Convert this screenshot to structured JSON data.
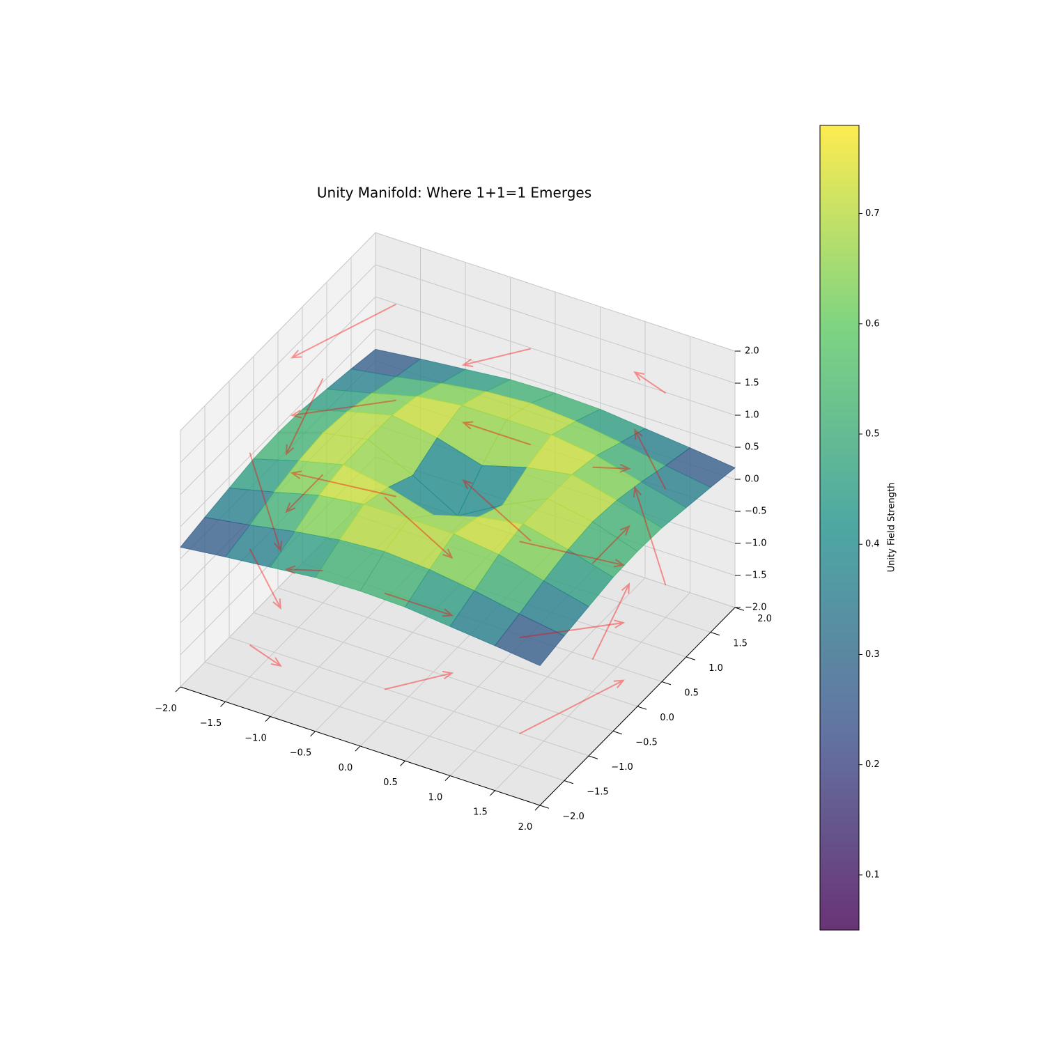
{
  "chart_data": {
    "type": "surface3d",
    "title": "Unity Manifold: Where 1+1=1 Emerges",
    "xlim": [
      -2,
      2
    ],
    "ylim": [
      -2,
      2
    ],
    "zlim": [
      -2,
      2
    ],
    "xticks": [
      {
        "value": -2,
        "label": "−2.0"
      },
      {
        "value": -1.5,
        "label": "−1.5"
      },
      {
        "value": -1,
        "label": "−1.0"
      },
      {
        "value": -0.5,
        "label": "−0.5"
      },
      {
        "value": 0,
        "label": "0.0"
      },
      0.5,
      {
        "value": 1,
        "label": "1.0"
      },
      1.5,
      {
        "value": 2,
        "label": "2.0"
      }
    ],
    "yticks": [
      {
        "value": -2,
        "label": "−2.0"
      },
      {
        "value": -1.5,
        "label": "−1.5"
      },
      {
        "value": -1,
        "label": "−1.0"
      },
      {
        "value": -0.5,
        "label": "−0.5"
      },
      {
        "value": 0,
        "label": "0.0"
      },
      0.5,
      {
        "value": 1,
        "label": "1.0"
      },
      1.5,
      {
        "value": 2,
        "label": "2.0"
      }
    ],
    "zticks": [
      {
        "value": -2,
        "label": "−2.0"
      },
      {
        "value": -1.5,
        "label": "−1.5"
      },
      {
        "value": -1,
        "label": "−1.0"
      },
      {
        "value": -0.5,
        "label": "−0.5"
      },
      {
        "value": 0,
        "label": "0.0"
      },
      0.5,
      {
        "value": 1,
        "label": "1.0"
      },
      1.5,
      {
        "value": 2,
        "label": "2.0"
      }
    ],
    "surface": {
      "x": [
        -2,
        -1.5,
        -1,
        -0.5,
        0,
        0.5,
        1,
        1.5,
        2
      ],
      "y": [
        -2,
        -1.5,
        -1,
        -0.5,
        0,
        0.5,
        1,
        1.5,
        2
      ],
      "values": [
        [
          0.18,
          0.26,
          0.33,
          0.4,
          0.42,
          0.4,
          0.33,
          0.26,
          0.18
        ],
        [
          0.26,
          0.37,
          0.5,
          0.6,
          0.65,
          0.6,
          0.5,
          0.37,
          0.26
        ],
        [
          0.33,
          0.5,
          0.68,
          0.77,
          0.78,
          0.77,
          0.68,
          0.5,
          0.33
        ],
        [
          0.4,
          0.6,
          0.77,
          0.65,
          0.45,
          0.65,
          0.77,
          0.6,
          0.4
        ],
        [
          0.42,
          0.65,
          0.78,
          0.45,
          0.05,
          0.45,
          0.78,
          0.65,
          0.42
        ],
        [
          0.4,
          0.6,
          0.77,
          0.65,
          0.45,
          0.65,
          0.77,
          0.6,
          0.4
        ],
        [
          0.33,
          0.5,
          0.68,
          0.77,
          0.78,
          0.77,
          0.68,
          0.5,
          0.33
        ],
        [
          0.26,
          0.37,
          0.5,
          0.6,
          0.65,
          0.6,
          0.5,
          0.37,
          0.26
        ],
        [
          0.18,
          0.26,
          0.33,
          0.4,
          0.42,
          0.4,
          0.33,
          0.26,
          0.18
        ]
      ]
    },
    "quiver": {
      "color": "#ff0000",
      "x": [
        -1.5,
        0,
        1.5,
        -1.5,
        1.5,
        -1.5,
        0,
        1.5,
        -1.5,
        0,
        1.5,
        -1.5,
        1.5,
        -1.5,
        0,
        1.5,
        -1.5,
        0,
        1.5,
        -1.5,
        1.5,
        -1.5,
        0,
        1.5
      ],
      "y": [
        -1.5,
        -1.5,
        -1.5,
        0,
        0,
        1.5,
        1.5,
        1.5,
        -1.5,
        -1.5,
        -1.5,
        0,
        0,
        1.5,
        1.5,
        1.5,
        -1.5,
        -1.5,
        -1.5,
        0,
        0,
        1.5,
        1.5,
        1.5
      ],
      "z": [
        -1.5,
        -1.5,
        -1.5,
        -1.5,
        -1.5,
        -1.5,
        -1.5,
        -1.5,
        0,
        0,
        0,
        0,
        0,
        0,
        0,
        0,
        1.5,
        1.5,
        1.5,
        1.5,
        1.5,
        1.5,
        1.5,
        1.5
      ],
      "u": [
        0.75,
        0.75,
        0.75,
        0,
        0,
        -0.75,
        -0.75,
        -0.75,
        0.75,
        0.75,
        0.75,
        0,
        0,
        -0.75,
        -0.75,
        -0.75,
        0.75,
        0.75,
        0.75,
        0,
        0,
        -0.75,
        -0.75,
        -0.75
      ],
      "v": [
        -0.75,
        0,
        0.75,
        -0.75,
        0.75,
        -0.75,
        0,
        0.75,
        -0.75,
        0,
        0.75,
        -0.75,
        0.75,
        -0.75,
        0,
        0.75,
        -0.75,
        0,
        0.75,
        -0.75,
        0.75,
        -0.75,
        0,
        0.75
      ],
      "w": [
        0.6,
        0.6,
        0.6,
        0.6,
        0.6,
        0.6,
        0.6,
        0.6,
        0,
        0,
        0,
        0,
        0,
        0,
        0,
        0,
        -0.6,
        -0.6,
        -0.6,
        -0.6,
        -0.6,
        -0.6,
        -0.6,
        -0.6
      ]
    },
    "clim": [
      0.05,
      0.78
    ],
    "cbar_ticks": [
      0.1,
      0.2,
      0.3,
      0.4,
      0.5,
      0.6,
      0.7
    ],
    "cbar_label": "Unity Field Strength",
    "grid": true
  }
}
